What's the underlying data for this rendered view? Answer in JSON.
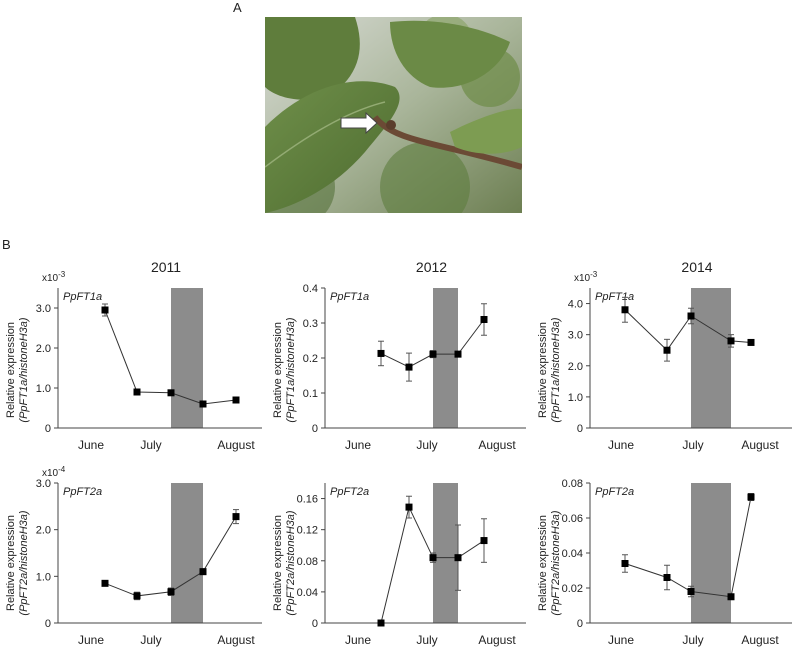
{
  "panels": {
    "a": "A",
    "b": "B"
  },
  "photo": {
    "subject": "branch with leaf and bud, arrow pointing at bud"
  },
  "colors": {
    "shade": "#8c8c8c",
    "line": "#333333",
    "marker": "#000000"
  },
  "chart_data": [
    {
      "type": "line",
      "title": "2011",
      "gene": "PpFT1a",
      "multiplier": "x10-3",
      "ylabel_1": "Relative expression",
      "ylabel_2": "(PpFT1a/histoneH3a)",
      "ylim": [
        0,
        3.5
      ],
      "yticks": [
        "0",
        "1.0",
        "2.0",
        "3.0"
      ],
      "ytick_values": [
        0,
        1.0,
        2.0,
        3.0
      ],
      "xticks": [
        "June",
        "July",
        "August"
      ],
      "x": [
        "Jun 29",
        "Jul 9",
        "Jul 20",
        "Jul 30",
        "Aug 9"
      ],
      "values": [
        2.95,
        0.9,
        0.88,
        0.6,
        0.7
      ],
      "errors": [
        0.15,
        0.06,
        0.05,
        0.05,
        0.04
      ]
    },
    {
      "type": "line",
      "title": "2012",
      "gene": "PpFT1a",
      "multiplier": "",
      "ylabel_1": "Relative expression",
      "ylabel_2": "(PpFT1a/histoneH3a)",
      "ylim": [
        0,
        0.4
      ],
      "yticks": [
        "0",
        "0.1",
        "0.2",
        "0.3",
        "0.4"
      ],
      "ytick_values": [
        0,
        0.1,
        0.2,
        0.3,
        0.4
      ],
      "xticks": [
        "June",
        "July",
        "August"
      ],
      "x": [
        "Jul 2",
        "Jul 12",
        "Jul 22",
        "Aug 1",
        "Aug 11"
      ],
      "values": [
        0.213,
        0.174,
        0.211,
        0.211,
        0.31
      ],
      "errors": [
        0.035,
        0.04,
        0.01,
        0.008,
        0.045
      ]
    },
    {
      "type": "line",
      "title": "2014",
      "gene": "PpFT1a",
      "multiplier": "x10-3",
      "ylabel_1": "Relative expression",
      "ylabel_2": "(PpFT1a/histoneH3a)",
      "ylim": [
        0,
        4.5
      ],
      "yticks": [
        "0",
        "1.0",
        "2.0",
        "3.0",
        "4.0"
      ],
      "ytick_values": [
        0,
        1.0,
        2.0,
        3.0,
        4.0
      ],
      "xticks": [
        "June",
        "July",
        "August"
      ],
      "x": [
        "Jun 24",
        "Jul 8",
        "Jul 16",
        "Jul 27",
        "Aug 3"
      ],
      "values": [
        3.8,
        2.5,
        3.6,
        2.8,
        2.75
      ],
      "errors": [
        0.4,
        0.35,
        0.25,
        0.2,
        0.0
      ]
    },
    {
      "type": "line",
      "title": "",
      "gene": "PpFT2a",
      "multiplier": "x10-4",
      "ylabel_1": "Relative expression",
      "ylabel_2": "(PpFT2a/histoneH3a)",
      "ylim": [
        0,
        3.0
      ],
      "yticks": [
        "0",
        "1.0",
        "2.0",
        "3.0"
      ],
      "ytick_values": [
        0,
        1.0,
        2.0,
        3.0
      ],
      "xticks": [
        "June",
        "July",
        "August"
      ],
      "x": [
        "Jun 29",
        "Jul 9",
        "Jul 20",
        "Jul 30",
        "Aug 9"
      ],
      "values": [
        0.85,
        0.58,
        0.67,
        1.1,
        2.28
      ],
      "errors": [
        0.04,
        0.08,
        0.08,
        0.06,
        0.15
      ]
    },
    {
      "type": "line",
      "title": "",
      "gene": "PpFT2a",
      "multiplier": "",
      "ylabel_1": "Relative expression",
      "ylabel_2": "(PpFT2a/histoneH3a)",
      "ylim": [
        0,
        0.18
      ],
      "yticks": [
        "0",
        "0.04",
        "0.08",
        "0.12",
        "0.16"
      ],
      "ytick_values": [
        0,
        0.04,
        0.08,
        0.12,
        0.16
      ],
      "xticks": [
        "June",
        "July",
        "August"
      ],
      "x": [
        "Jul 2",
        "Jul 12",
        "Jul 22",
        "Aug 1",
        "Aug 11"
      ],
      "values": [
        0.0,
        0.149,
        0.084,
        0.084,
        0.106
      ],
      "errors": [
        0.0,
        0.014,
        0.006,
        0.042,
        0.028
      ]
    },
    {
      "type": "line",
      "title": "",
      "gene": "PpFT2a",
      "multiplier": "",
      "ylabel_1": "Relative expression",
      "ylabel_2": "(PpFT2a/histoneH3a)",
      "ylim": [
        0,
        0.08
      ],
      "yticks": [
        "0",
        "0.02",
        "0.04",
        "0.06",
        "0.08"
      ],
      "ytick_values": [
        0,
        0.02,
        0.04,
        0.06,
        0.08
      ],
      "xticks": [
        "June",
        "July",
        "August"
      ],
      "x": [
        "Jun 24",
        "Jul 8",
        "Jul 16",
        "Jul 27",
        "Aug 3"
      ],
      "values": [
        0.034,
        0.026,
        0.018,
        0.015,
        0.072
      ],
      "errors": [
        0.005,
        0.007,
        0.003,
        0.001,
        0.002
      ]
    }
  ]
}
